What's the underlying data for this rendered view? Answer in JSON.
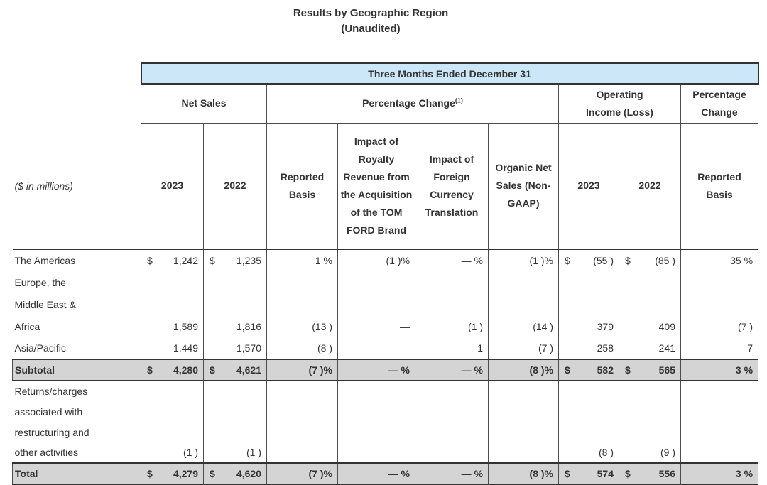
{
  "page": {
    "title_line1": "Results by Geographic Region",
    "title_line2": "(Unaudited)"
  },
  "colors": {
    "header_band_blue": "#cce7f8",
    "subtotal_band_gray": "#d4d4d4",
    "border": "#4d4d4d",
    "text": "#333333"
  },
  "table": {
    "span_header": "Three Months Ended December 31",
    "row_label_note": "($ in millions)",
    "groups": [
      {
        "label": "Net Sales",
        "sup": "",
        "span": 2
      },
      {
        "label": "Percentage Change",
        "sup": "(1)",
        "span": 4
      },
      {
        "label": "Operating Income (Loss)",
        "sup": "",
        "span": 2
      },
      {
        "label": "Percentage Change",
        "sup": "",
        "span": 1
      }
    ],
    "columns": [
      {
        "header": "2023"
      },
      {
        "header": "2022"
      },
      {
        "header": "Reported Basis"
      },
      {
        "header": "Impact of Royalty Revenue from the Acquisition of the TOM FORD Brand"
      },
      {
        "header": "Impact of Foreign Currency Translation"
      },
      {
        "header": "Organic Net Sales (Non-GAAP)"
      },
      {
        "header": "2023"
      },
      {
        "header": "2022"
      },
      {
        "header": "Reported Basis"
      }
    ],
    "rows": [
      {
        "label": "The Americas",
        "kind": "data",
        "cells": [
          {
            "cur": "$",
            "val": "1,242"
          },
          {
            "cur": "$",
            "val": "1,235"
          },
          {
            "val": "1 %"
          },
          {
            "val": "(1 )%"
          },
          {
            "val": "— %"
          },
          {
            "val": "(1 )%"
          },
          {
            "cur": "$",
            "val": "(55 )"
          },
          {
            "cur": "$",
            "val": "(85 )"
          },
          {
            "val": "35 %"
          }
        ]
      },
      {
        "label": "Europe, the",
        "kind": "data",
        "cells": [
          {},
          {},
          {},
          {},
          {},
          {},
          {},
          {},
          {}
        ]
      },
      {
        "label": "Middle East &",
        "kind": "data",
        "cells": [
          {},
          {},
          {},
          {},
          {},
          {},
          {},
          {},
          {}
        ]
      },
      {
        "label": "Africa",
        "kind": "data",
        "cells": [
          {
            "val": "1,589"
          },
          {
            "val": "1,816"
          },
          {
            "val": "(13 )"
          },
          {
            "val": "—"
          },
          {
            "val": "(1 )"
          },
          {
            "val": "(14 )"
          },
          {
            "val": "379"
          },
          {
            "val": "409"
          },
          {
            "val": "(7 )"
          }
        ]
      },
      {
        "label": "Asia/Pacific",
        "kind": "data",
        "cells": [
          {
            "val": "1,449"
          },
          {
            "val": "1,570"
          },
          {
            "val": "(8 )"
          },
          {
            "val": "—"
          },
          {
            "val": "1"
          },
          {
            "val": "(7 )"
          },
          {
            "val": "258"
          },
          {
            "val": "241"
          },
          {
            "val": "7"
          }
        ]
      },
      {
        "label": "Subtotal",
        "kind": "band",
        "cells": [
          {
            "cur": "$",
            "val": "4,280"
          },
          {
            "cur": "$",
            "val": "4,621"
          },
          {
            "val": "(7 )%"
          },
          {
            "val": "— %"
          },
          {
            "val": "— %"
          },
          {
            "val": "(8 )%"
          },
          {
            "cur": "$",
            "val": "582"
          },
          {
            "cur": "$",
            "val": "565"
          },
          {
            "val": "3 %"
          }
        ]
      },
      {
        "label": "Returns/charges",
        "kind": "data2",
        "cells": [
          {},
          {},
          {},
          {},
          {},
          {},
          {},
          {},
          {}
        ]
      },
      {
        "label": "associated with",
        "kind": "data2",
        "cells": [
          {},
          {},
          {},
          {},
          {},
          {},
          {},
          {},
          {}
        ]
      },
      {
        "label": "restructuring and",
        "kind": "data2",
        "cells": [
          {},
          {},
          {},
          {},
          {},
          {},
          {},
          {},
          {}
        ]
      },
      {
        "label": "other activities",
        "kind": "data2",
        "cells": [
          {
            "val": "(1 )"
          },
          {
            "val": "(1 )"
          },
          {},
          {},
          {},
          {},
          {
            "val": "(8 )"
          },
          {
            "val": "(9 )"
          },
          {}
        ]
      },
      {
        "label": "Total",
        "kind": "band",
        "cells": [
          {
            "cur": "$",
            "val": "4,279"
          },
          {
            "cur": "$",
            "val": "4,620"
          },
          {
            "val": "(7 )%"
          },
          {
            "val": "— %"
          },
          {
            "val": "— %"
          },
          {
            "val": "(8 )%"
          },
          {
            "cur": "$",
            "val": "574"
          },
          {
            "cur": "$",
            "val": "556"
          },
          {
            "val": "3 %"
          }
        ]
      }
    ]
  }
}
